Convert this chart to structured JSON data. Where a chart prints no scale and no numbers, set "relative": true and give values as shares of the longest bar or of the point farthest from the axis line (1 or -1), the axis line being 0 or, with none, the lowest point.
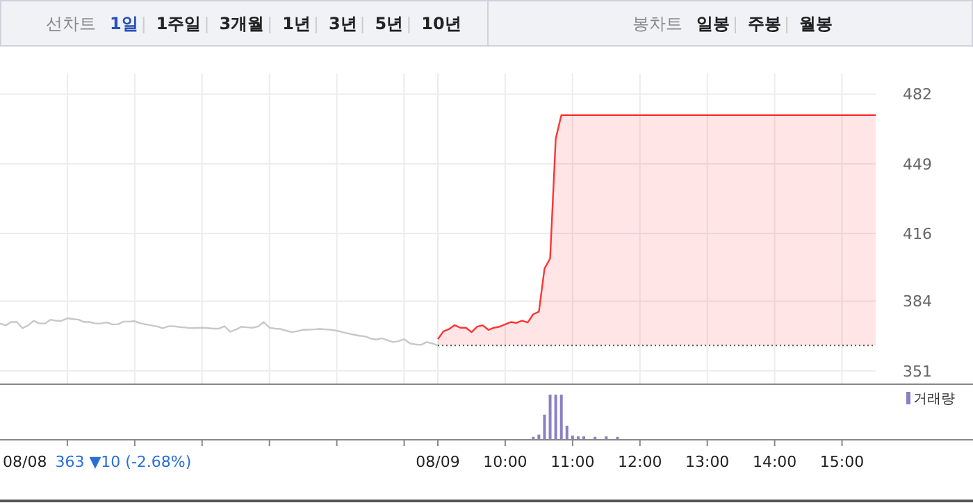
{
  "chart_data": [
    {
      "type": "other",
      "annotations": [
        "선차트",
        "1일",
        "1주일",
        "3개월",
        "1년",
        "3년",
        "5년",
        "10년",
        "봉차트",
        "일봉",
        "주봉",
        "월봉"
      ]
    },
    {
      "type": "line",
      "ylim": [
        345,
        482
      ],
      "yticks": [
        351,
        384,
        416,
        449,
        482
      ],
      "tick_labels": "y",
      "grid": true,
      "categories": [
        null,
        null,
        null,
        null,
        null,
        null,
        null,
        null,
        null,
        null,
        null,
        null,
        null,
        null,
        null,
        null,
        null,
        null,
        null,
        null,
        null,
        null,
        null,
        null,
        null,
        null,
        null,
        null,
        null,
        null,
        null,
        null,
        null,
        null,
        null,
        null,
        null,
        null,
        null,
        null,
        null,
        null,
        null,
        null,
        null,
        null,
        null,
        null,
        null,
        null,
        null,
        null,
        null,
        null,
        null,
        null,
        null,
        null,
        null,
        null,
        null,
        null,
        null,
        null,
        null,
        null,
        null,
        null,
        null,
        null,
        null,
        null,
        null,
        null,
        null,
        null,
        null,
        null,
        null,
        null,
        null,
        null,
        null,
        null,
        null,
        null,
        null,
        null,
        null,
        null,
        null,
        null,
        null,
        null,
        null,
        null,
        null,
        null,
        null,
        null,
        null,
        null,
        null,
        null,
        null,
        null,
        null,
        null,
        null,
        null,
        null,
        null,
        null,
        null,
        null,
        null,
        null,
        null,
        null,
        null,
        null,
        null,
        null,
        null,
        null,
        null,
        null,
        null,
        null,
        null,
        null,
        null,
        null,
        null,
        null,
        null,
        null,
        null,
        null,
        null,
        null,
        null,
        null,
        null,
        null,
        null,
        null,
        null,
        null,
        null,
        null,
        null,
        null,
        null,
        null,
        null,
        null
      ],
      "ref_lines": [
        {
          "axis": "y",
          "value": 363,
          "color": "#555555",
          "line_style": "dotted"
        }
      ],
      "series": [
        {
          "type": "line",
          "color": "#c8c8c8",
          "values": [
            373.4,
            372.5,
            374.1,
            374.1,
            371.2,
            372.5,
            374.7,
            373.4,
            373.4,
            375.2,
            374.7,
            374.7,
            375.9,
            375.5,
            375.2,
            374.1,
            374.1,
            373.4,
            373.4,
            373.9,
            373.0,
            373.0,
            374.3,
            374.3,
            374.5,
            373.5,
            373.0,
            372.5,
            372.0,
            371.2,
            372.1,
            372.1,
            371.7,
            371.5,
            371.2,
            371.3,
            371.4,
            371.2,
            371.0,
            371.0,
            372.1,
            369.5,
            370.5,
            371.9,
            371.6,
            371.4,
            372.0,
            374.1,
            371.4,
            371.0,
            370.8,
            370.0,
            369.3,
            369.8,
            370.4,
            370.5,
            370.6,
            370.8,
            370.6,
            370.4,
            370.0,
            369.3,
            368.7,
            368.1,
            367.6,
            367.3,
            366.3,
            365.8,
            366.4,
            365.5,
            364.6,
            365.0,
            366.0,
            364.0,
            363.5,
            363.3,
            364.6,
            364.0,
            363,
            null,
            null,
            null,
            null,
            null,
            null,
            null,
            null,
            null,
            null,
            null,
            null,
            null,
            null,
            null,
            null,
            null,
            null,
            null,
            null,
            null,
            null,
            null,
            null,
            null,
            null,
            null,
            null,
            null,
            null,
            null,
            null,
            null,
            null,
            null,
            null,
            null,
            null,
            null,
            null,
            null,
            null,
            null,
            null,
            null,
            null,
            null,
            null,
            null,
            null,
            null,
            null,
            null,
            null,
            null,
            null,
            null,
            null,
            null,
            null,
            null,
            null,
            null,
            null,
            null,
            null,
            null,
            null,
            null,
            null,
            null,
            null,
            null,
            null,
            null,
            null,
            null,
            null
          ]
        },
        {
          "type": "area",
          "color": "#ff3333",
          "values": [
            null,
            null,
            null,
            null,
            null,
            null,
            null,
            null,
            null,
            null,
            null,
            null,
            null,
            null,
            null,
            null,
            null,
            null,
            null,
            null,
            null,
            null,
            null,
            null,
            null,
            null,
            null,
            null,
            null,
            null,
            null,
            null,
            null,
            null,
            null,
            null,
            null,
            null,
            null,
            null,
            null,
            null,
            null,
            null,
            null,
            null,
            null,
            null,
            null,
            null,
            null,
            null,
            null,
            null,
            null,
            null,
            null,
            null,
            null,
            null,
            null,
            null,
            null,
            null,
            null,
            null,
            null,
            null,
            null,
            null,
            null,
            null,
            null,
            null,
            null,
            null,
            null,
            null,
            366.0,
            369.7,
            370.8,
            372.6,
            371.4,
            371.4,
            369.3,
            371.9,
            372.6,
            370.4,
            371.4,
            371.9,
            373.0,
            374.1,
            373.7,
            374.7,
            373.9,
            377.8,
            379.0,
            399.4,
            404.2,
            460.9,
            472,
            472,
            472,
            472,
            472,
            472,
            472,
            472,
            472,
            472,
            472,
            472,
            472,
            472,
            472,
            472,
            472,
            472,
            472,
            472,
            472,
            472,
            472,
            472,
            472,
            472,
            472,
            472,
            472,
            472,
            472,
            472,
            472,
            472,
            472,
            472,
            472,
            472,
            472,
            472,
            472,
            472,
            472,
            472,
            472,
            472,
            472,
            472,
            472,
            472,
            472,
            472,
            472,
            472,
            472,
            472,
            472
          ]
        }
      ]
    },
    {
      "type": "bar",
      "relative": true,
      "tick_labels": "x",
      "legend": "top right",
      "categories": [
        "08/08",
        null,
        null,
        null,
        null,
        null,
        null,
        null,
        null,
        null,
        null,
        null,
        null,
        null,
        null,
        null,
        null,
        null,
        null,
        null,
        null,
        null,
        null,
        null,
        null,
        null,
        null,
        null,
        null,
        null,
        null,
        null,
        null,
        null,
        null,
        null,
        null,
        null,
        null,
        null,
        null,
        null,
        null,
        null,
        null,
        null,
        null,
        null,
        null,
        null,
        null,
        null,
        null,
        null,
        null,
        null,
        null,
        null,
        null,
        null,
        null,
        null,
        null,
        null,
        null,
        null,
        null,
        null,
        null,
        null,
        null,
        null,
        null,
        null,
        null,
        null,
        null,
        null,
        "08/09",
        null,
        null,
        null,
        null,
        null,
        null,
        null,
        null,
        null,
        null,
        null,
        "10:00",
        null,
        null,
        null,
        null,
        null,
        null,
        null,
        null,
        null,
        null,
        null,
        "11:00",
        null,
        null,
        null,
        null,
        null,
        null,
        null,
        null,
        null,
        null,
        null,
        "12:00",
        null,
        null,
        null,
        null,
        null,
        null,
        null,
        null,
        null,
        null,
        null,
        "13:00",
        null,
        null,
        null,
        null,
        null,
        null,
        null,
        null,
        null,
        null,
        null,
        "14:00",
        null,
        null,
        null,
        null,
        null,
        null,
        null,
        null,
        null,
        null,
        null,
        "15:00",
        null,
        null,
        null,
        null,
        null,
        null
      ],
      "annotations": [
        "363 ▼10 (-2.68%)"
      ],
      "series": [
        {
          "name": "거래량",
          "color": "#8b7fc4",
          "values": [
            null,
            null,
            null,
            null,
            null,
            null,
            null,
            null,
            null,
            null,
            null,
            null,
            null,
            null,
            null,
            null,
            null,
            null,
            null,
            null,
            null,
            null,
            null,
            null,
            null,
            null,
            null,
            null,
            null,
            null,
            null,
            null,
            null,
            null,
            null,
            null,
            null,
            null,
            null,
            null,
            null,
            null,
            null,
            null,
            null,
            null,
            null,
            null,
            null,
            null,
            null,
            null,
            null,
            null,
            null,
            null,
            null,
            null,
            null,
            null,
            null,
            null,
            null,
            null,
            null,
            null,
            null,
            null,
            null,
            null,
            null,
            null,
            null,
            null,
            null,
            null,
            null,
            null,
            null,
            null,
            null,
            null,
            null,
            null,
            null,
            null,
            null,
            null,
            null,
            null,
            null,
            null,
            null,
            null,
            null,
            0.05,
            0.1,
            0.55,
            1.0,
            1.0,
            1.0,
            0.3,
            0.08,
            0.06,
            0.06,
            null,
            0.05,
            null,
            0.06,
            null,
            0.05,
            null,
            null,
            null,
            null,
            null,
            null,
            null,
            null,
            null,
            null,
            null,
            null,
            null,
            null,
            null,
            null,
            null,
            null,
            null,
            null,
            null,
            null,
            null,
            null,
            null,
            null,
            null,
            null,
            null,
            null,
            null,
            null,
            null,
            null,
            null,
            null,
            null,
            null,
            null,
            null,
            null,
            null,
            null,
            null,
            null,
            null
          ]
        }
      ]
    }
  ]
}
